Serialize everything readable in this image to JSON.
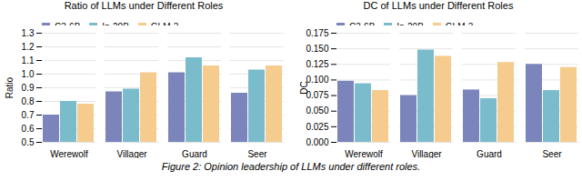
{
  "caption": "Figure 2: Opinion leadership of LLMs under different roles.",
  "chart_data": [
    {
      "type": "bar",
      "title": "Ratio of LLMs under Different Roles",
      "ylabel": "Ratio",
      "categories": [
        "Werewolf",
        "Villager",
        "Guard",
        "Seer"
      ],
      "series": [
        {
          "name": "C3-6B",
          "color": "#7b85bc",
          "values": [
            0.7,
            0.87,
            1.01,
            0.86
          ]
        },
        {
          "name": "In-20B",
          "color": "#7bbccc",
          "values": [
            0.8,
            0.89,
            1.12,
            1.03
          ]
        },
        {
          "name": "GLM-3",
          "color": "#f5cb8e",
          "values": [
            0.78,
            1.01,
            1.06,
            1.06
          ]
        }
      ],
      "ylim": [
        0.5,
        1.3
      ],
      "yticks": [
        0.5,
        0.6,
        0.7,
        0.8,
        0.9,
        {
          "value": 1.0,
          "label": "1.0"
        },
        1.1,
        1.2,
        1.3
      ],
      "grid": true,
      "legend": "upper left"
    },
    {
      "type": "bar",
      "title": "DC of LLMs under Different Roles",
      "ylabel": "DC",
      "categories": [
        "Werewolf",
        "Villager",
        "Guard",
        "Seer"
      ],
      "series": [
        {
          "name": "C3-6B",
          "color": "#7b85bc",
          "values": [
            0.098,
            0.075,
            0.084,
            0.125
          ]
        },
        {
          "name": "In-20B",
          "color": "#7bbccc",
          "values": [
            0.094,
            0.148,
            0.07,
            0.083
          ]
        },
        {
          "name": "GLM-3",
          "color": "#f5cb8e",
          "values": [
            0.083,
            0.138,
            0.128,
            0.12
          ]
        }
      ],
      "ylim": [
        0.0,
        0.175
      ],
      "yticks": [
        {
          "value": 0.0,
          "label": "0.000"
        },
        0.025,
        {
          "value": 0.05,
          "label": "0.050"
        },
        0.075,
        {
          "value": 0.1,
          "label": "0.100"
        },
        0.125,
        {
          "value": 0.15,
          "label": "0.150"
        },
        0.175
      ],
      "grid": true,
      "legend": "upper left"
    }
  ]
}
